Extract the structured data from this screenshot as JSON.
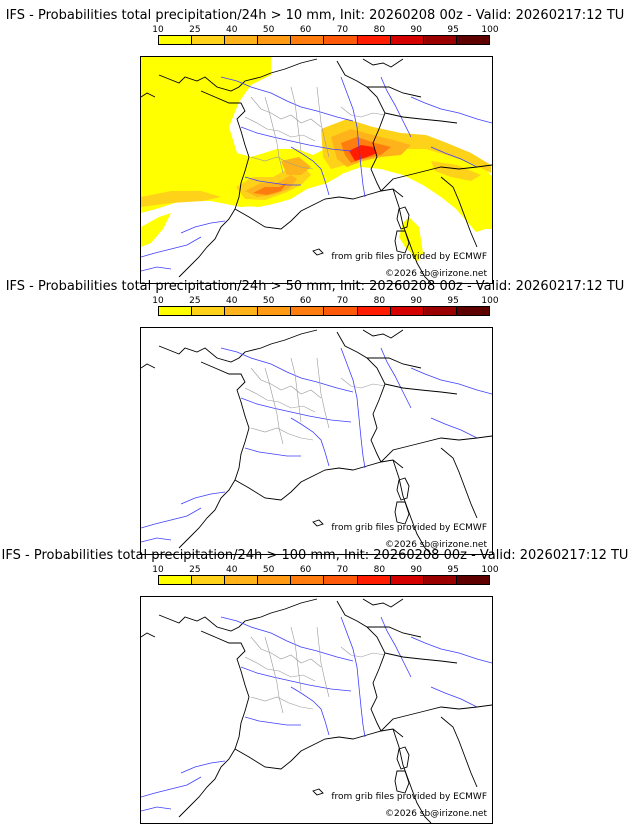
{
  "colorbar": {
    "ticks": [
      "10",
      "25",
      "40",
      "50",
      "60",
      "70",
      "80",
      "90",
      "95",
      "100"
    ],
    "colors": [
      "#ffff00",
      "#ffd21a",
      "#ffb31a",
      "#ff9a14",
      "#ff7d0f",
      "#ff5a0a",
      "#ff1c00",
      "#d40000",
      "#9b0000",
      "#5e0000"
    ]
  },
  "panels": [
    {
      "title": "IFS - Probabilities total precipitation/24h > 10 mm, Init: 20260208 00z - Valid: 20260217:12 TU",
      "credit": "from grib files provided by ECMWF",
      "copyright": "©2026 sb@irizone.net",
      "has_precip": true
    },
    {
      "title": "IFS - Probabilities total precipitation/24h > 50 mm, Init: 20260208 00z - Valid: 20260217:12 TU",
      "credit": "from grib files provided by ECMWF",
      "copyright": "©2026 sb@irizone.net",
      "has_precip": false
    },
    {
      "title": "IFS - Probabilities total precipitation/24h > 100 mm, Init: 20260208 00z - Valid: 20260217:12 TU",
      "credit": "from grib files provided by ECMWF",
      "copyright": "©2026 sb@irizone.net",
      "has_precip": false
    }
  ]
}
